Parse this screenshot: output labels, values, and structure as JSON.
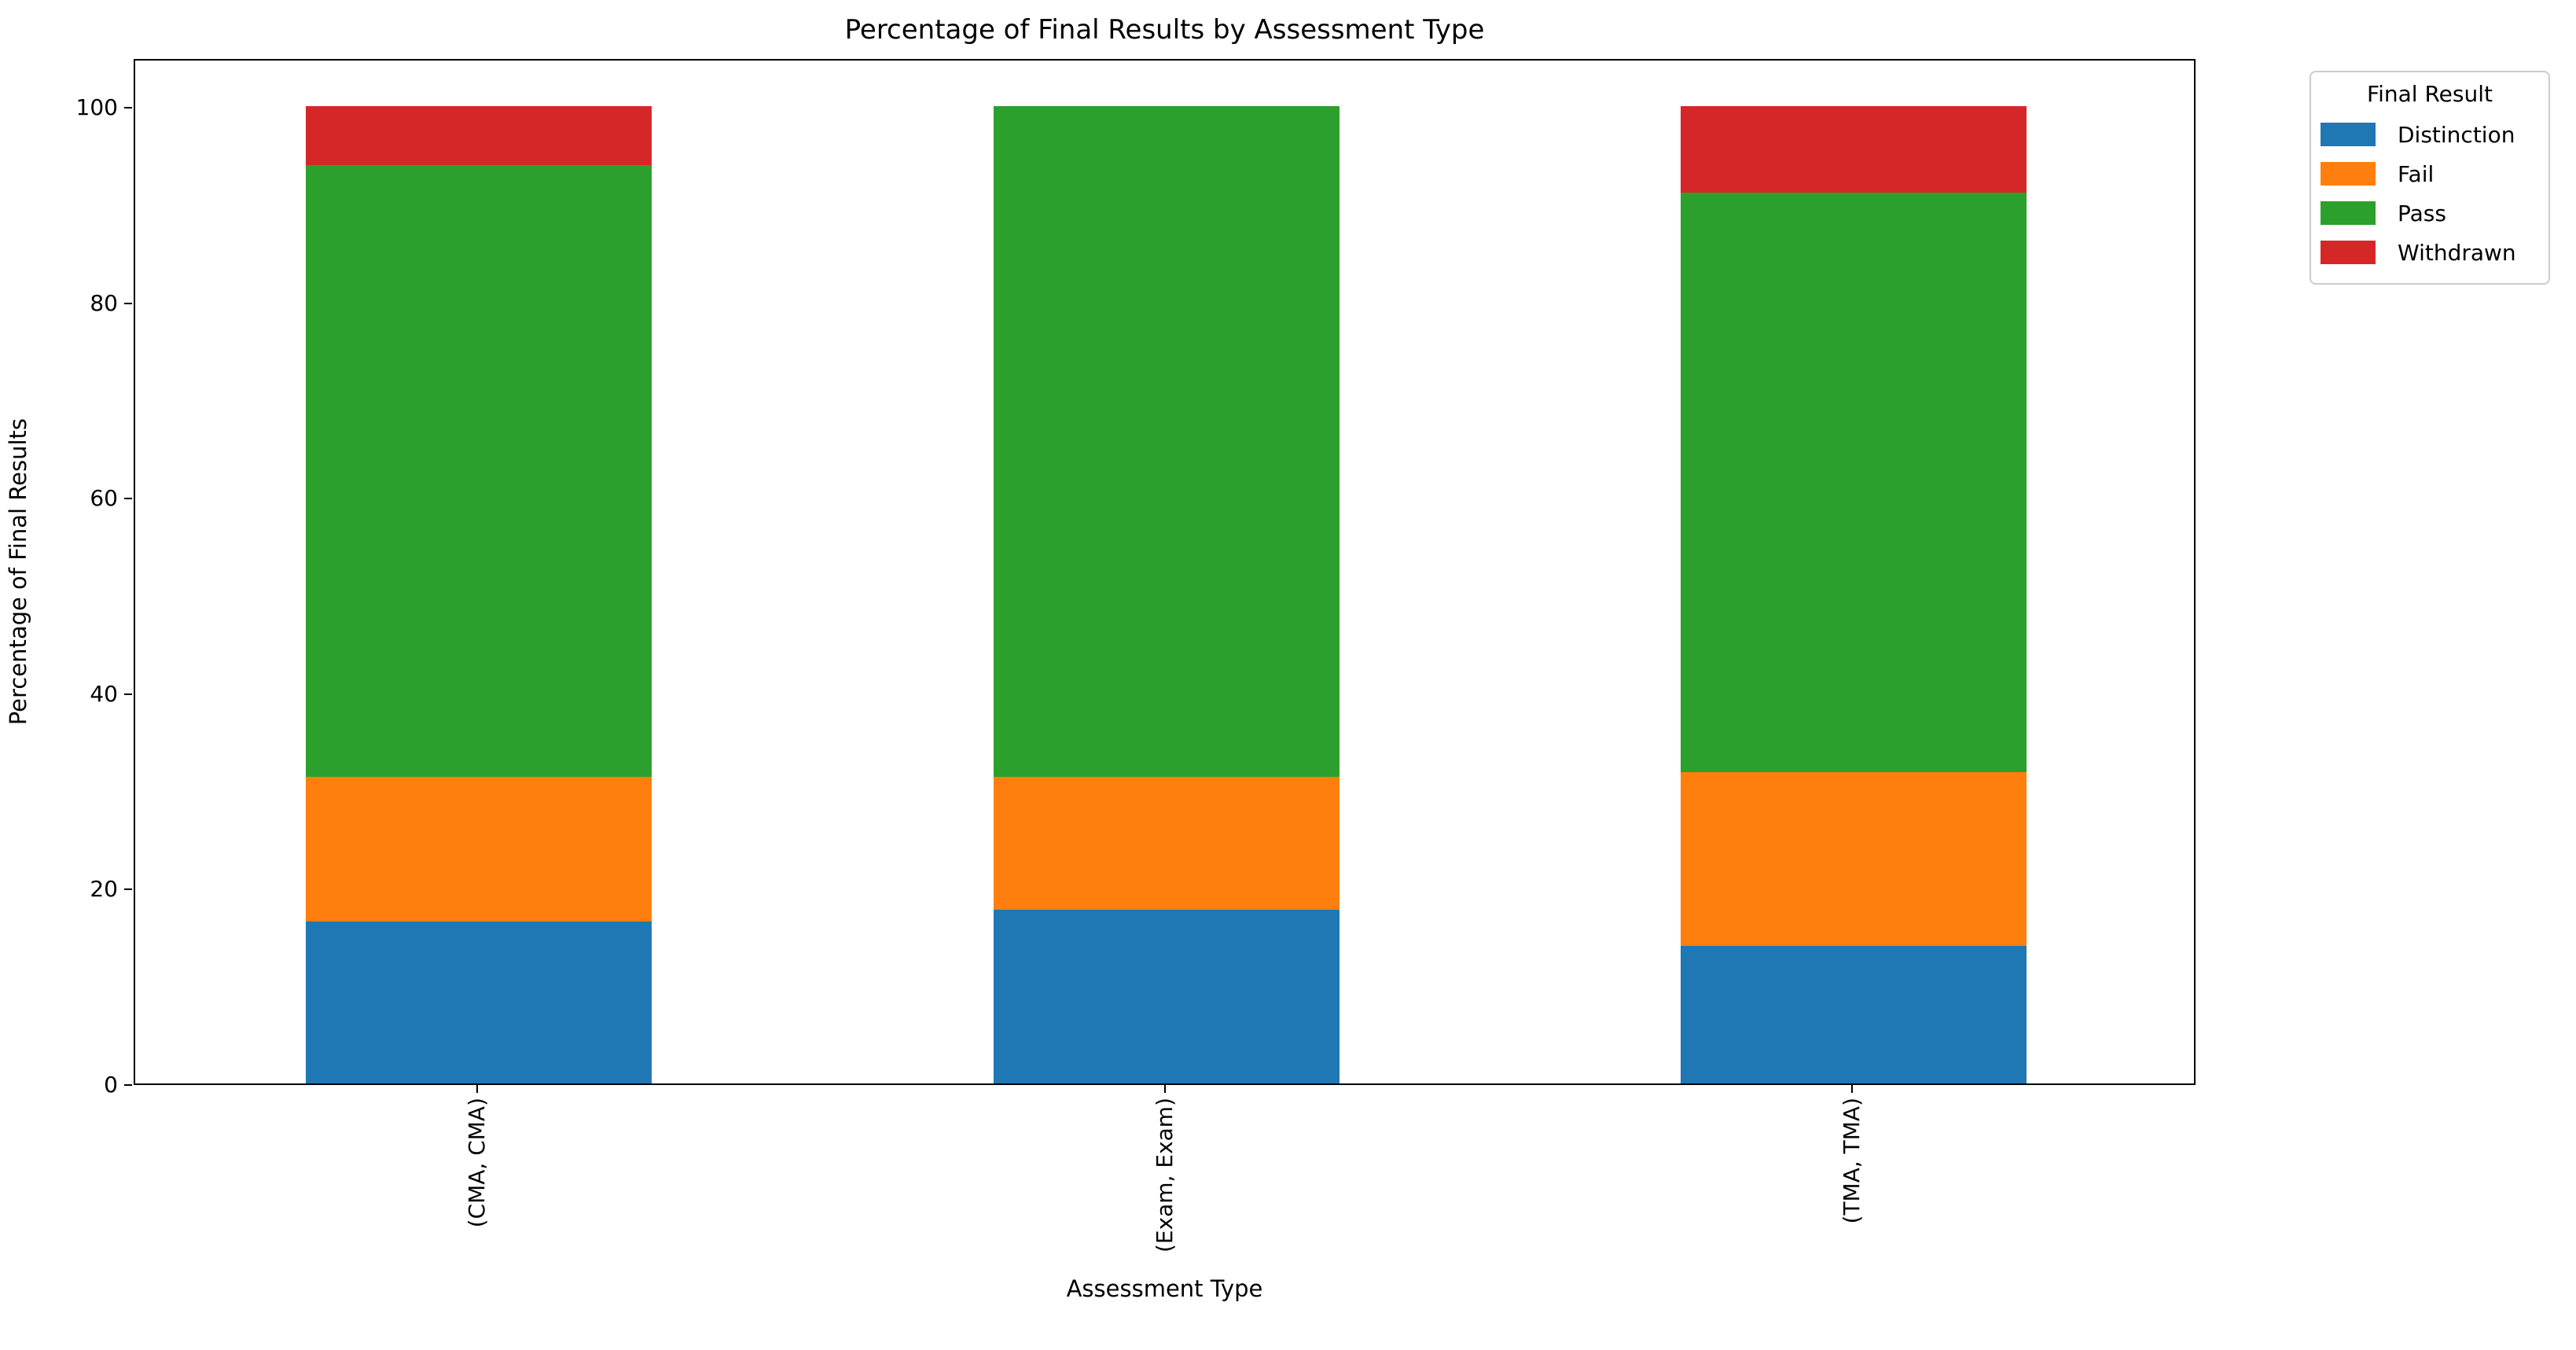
{
  "chart_data": {
    "type": "bar",
    "stacked": true,
    "title": "Percentage of Final Results by Assessment Type",
    "xlabel": "Assessment Type",
    "ylabel": "Percentage of Final Results",
    "categories": [
      "(CMA, CMA)",
      "(Exam, Exam)",
      "(TMA, TMA)"
    ],
    "series": [
      {
        "name": "Distinction",
        "color": "#1f77b4",
        "values": [
          16.6,
          17.8,
          14.1
        ]
      },
      {
        "name": "Fail",
        "color": "#ff7f0e",
        "values": [
          14.8,
          13.6,
          17.8
        ]
      },
      {
        "name": "Pass",
        "color": "#2ca02c",
        "values": [
          62.6,
          68.6,
          59.3
        ]
      },
      {
        "name": "Withdrawn",
        "color": "#d62728",
        "values": [
          6.0,
          0.0,
          8.8
        ]
      }
    ],
    "ylim": [
      0,
      105
    ],
    "yticks": [
      0,
      20,
      40,
      60,
      80,
      100
    ],
    "legend": {
      "title": "Final Result",
      "position": "upper-right-outside"
    },
    "grid": false,
    "axis_color": "#000000",
    "background_color": "#ffffff"
  }
}
